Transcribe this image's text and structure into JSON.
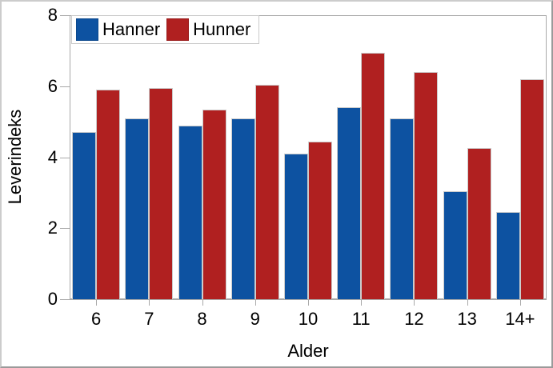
{
  "chart_data": {
    "type": "bar",
    "title": "",
    "categories": [
      "6",
      "7",
      "8",
      "9",
      "10",
      "11",
      "12",
      "13",
      "14+"
    ],
    "series": [
      {
        "name": "Hanner",
        "color": "#0d52a1",
        "values": [
          4.7,
          5.1,
          4.9,
          5.1,
          4.1,
          5.4,
          5.1,
          3.05,
          2.45
        ]
      },
      {
        "name": "Hunner",
        "color": "#b02020",
        "values": [
          5.9,
          5.95,
          5.35,
          6.05,
          4.45,
          6.95,
          6.4,
          4.25,
          6.2
        ]
      }
    ],
    "xlabel": "Alder",
    "ylabel": "Leverindeks",
    "ylim": [
      0,
      8
    ],
    "yticks": [
      0,
      2,
      4,
      6,
      8
    ],
    "grid": false,
    "legend_position": "top-left-inside",
    "bar_layout": "grouped"
  },
  "colors": {
    "hanner_blue": "#0d52a1",
    "hunner_red": "#b02020",
    "axis_gray": "#a9a9a9",
    "text": "#000000",
    "background": "#ffffff"
  }
}
